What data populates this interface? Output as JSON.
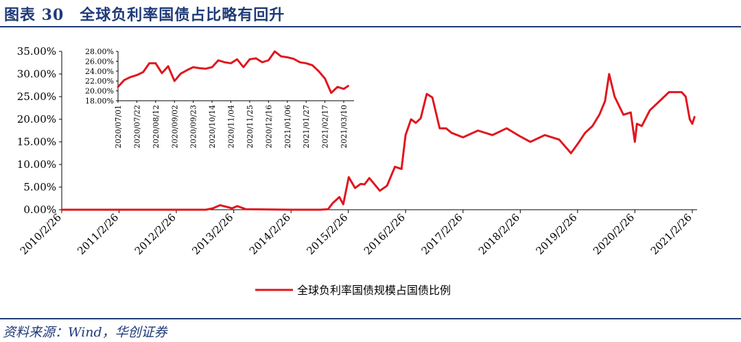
{
  "header": {
    "title": "图表 30　全球负利率国债占比略有回升"
  },
  "footer": {
    "source": "资料来源：Wind，华创证券"
  },
  "colors": {
    "series": "#e0161e",
    "title": "#1f3a78",
    "axis": "#000000"
  },
  "chart_data": [
    {
      "type": "line",
      "title": "",
      "xlabel": "",
      "ylabel": "",
      "legend_position": "bottom",
      "grid": false,
      "ylim": [
        0,
        35
      ],
      "y_ticks": [
        "0.00%",
        "5.00%",
        "10.00%",
        "15.00%",
        "20.00%",
        "25.00%",
        "30.00%",
        "35.00%"
      ],
      "x_ticks": [
        "2010/2/26",
        "2011/2/26",
        "2012/2/26",
        "2013/2/26",
        "2014/2/26",
        "2015/2/26",
        "2016/2/26",
        "2017/2/26",
        "2018/2/26",
        "2019/2/26",
        "2020/2/26",
        "2021/2/26"
      ],
      "series": [
        {
          "name": "全球负利率国债规模占国债比例",
          "x": [
            "2010/2/26",
            "2011/2/26",
            "2012/2/26",
            "2012/9/1",
            "2012/10/15",
            "2012/12/1",
            "2013/1/15",
            "2013/2/15",
            "2013/3/20",
            "2013/5/15",
            "2014/2/26",
            "2014/9/1",
            "2014/10/20",
            "2014/11/20",
            "2014/12/31",
            "2015/1/25",
            "2015/3/1",
            "2015/4/10",
            "2015/5/15",
            "2015/6/10",
            "2015/7/10",
            "2015/9/15",
            "2015/10/31",
            "2015/12/20",
            "2016/1/31",
            "2016/2/26",
            "2016/4/1",
            "2016/5/1",
            "2016/6/1",
            "2016/7/10",
            "2016/8/15",
            "2016/9/30",
            "2016/11/10",
            "2016/12/15",
            "2017/2/26",
            "2017/6/1",
            "2017/9/1",
            "2017/12/1",
            "2018/2/26",
            "2018/5/1",
            "2018/8/1",
            "2018/11/1",
            "2019/1/15",
            "2019/2/26",
            "2019/4/15",
            "2019/6/1",
            "2019/7/15",
            "2019/8/20",
            "2019/9/15",
            "2019/10/20",
            "2019/12/15",
            "2020/1/31",
            "2020/2/26",
            "2020/3/10",
            "2020/4/10",
            "2020/6/1",
            "2020/8/1",
            "2020/10/1",
            "2020/12/20",
            "2021/1/15",
            "2021/2/10",
            "2021/2/26",
            "2021/3/12"
          ],
          "values": [
            0.0,
            0.0,
            0.0,
            0.0,
            0.3,
            1.0,
            0.6,
            0.3,
            0.8,
            0.1,
            0.0,
            0.0,
            0.1,
            1.5,
            2.8,
            1.2,
            7.2,
            4.8,
            5.7,
            5.6,
            7.0,
            4.2,
            5.3,
            9.5,
            9.0,
            16.5,
            20.0,
            19.2,
            20.2,
            25.6,
            24.8,
            18.0,
            18.0,
            17.0,
            16.0,
            17.5,
            16.5,
            18.0,
            16.2,
            15.0,
            16.5,
            15.5,
            12.5,
            14.5,
            17.0,
            18.5,
            21.0,
            24.0,
            30.0,
            25.0,
            21.0,
            21.5,
            15.0,
            19.0,
            18.5,
            22.0,
            24.0,
            26.0,
            26.0,
            25.0,
            20.0,
            19.0,
            20.5
          ]
        }
      ]
    },
    {
      "type": "line",
      "title": "",
      "xlabel": "",
      "ylabel": "",
      "legend_position": "none",
      "grid": false,
      "ylim": [
        18,
        28
      ],
      "y_ticks": [
        "18.00%",
        "20.00%",
        "22.00%",
        "24.00%",
        "26.00%",
        "28.00%"
      ],
      "x_ticks": [
        "2020/07/01",
        "2020/07/22",
        "2020/08/12",
        "2020/09/02",
        "2020/09/23",
        "2020/10/14",
        "2020/11/04",
        "2020/11/25",
        "2020/12/16",
        "2021/01/06",
        "2021/01/27",
        "2021/02/17",
        "2021/03/10"
      ],
      "series": [
        {
          "name": "",
          "x": [
            "2020/07/01",
            "2020/07/08",
            "2020/07/15",
            "2020/07/22",
            "2020/07/29",
            "2020/08/05",
            "2020/08/12",
            "2020/08/19",
            "2020/08/26",
            "2020/09/02",
            "2020/09/09",
            "2020/09/16",
            "2020/09/23",
            "2020/09/30",
            "2020/10/07",
            "2020/10/14",
            "2020/10/21",
            "2020/10/28",
            "2020/11/04",
            "2020/11/11",
            "2020/11/18",
            "2020/11/25",
            "2020/12/02",
            "2020/12/09",
            "2020/12/16",
            "2020/12/23",
            "2020/12/30",
            "2021/01/06",
            "2021/01/13",
            "2021/01/20",
            "2021/01/27",
            "2021/02/03",
            "2021/02/10",
            "2021/02/17",
            "2021/02/24",
            "2021/03/03",
            "2021/03/10",
            "2021/03/15"
          ],
          "values": [
            20.8,
            22.2,
            22.8,
            23.2,
            23.8,
            25.6,
            25.6,
            23.6,
            25.0,
            22.0,
            23.5,
            24.2,
            24.8,
            24.6,
            24.5,
            24.8,
            26.2,
            25.8,
            25.6,
            26.4,
            24.8,
            26.4,
            26.6,
            25.8,
            26.2,
            28.0,
            27.0,
            26.8,
            26.5,
            25.8,
            25.6,
            25.2,
            24.0,
            22.5,
            19.6,
            20.8,
            20.4,
            21.0
          ]
        }
      ]
    }
  ]
}
